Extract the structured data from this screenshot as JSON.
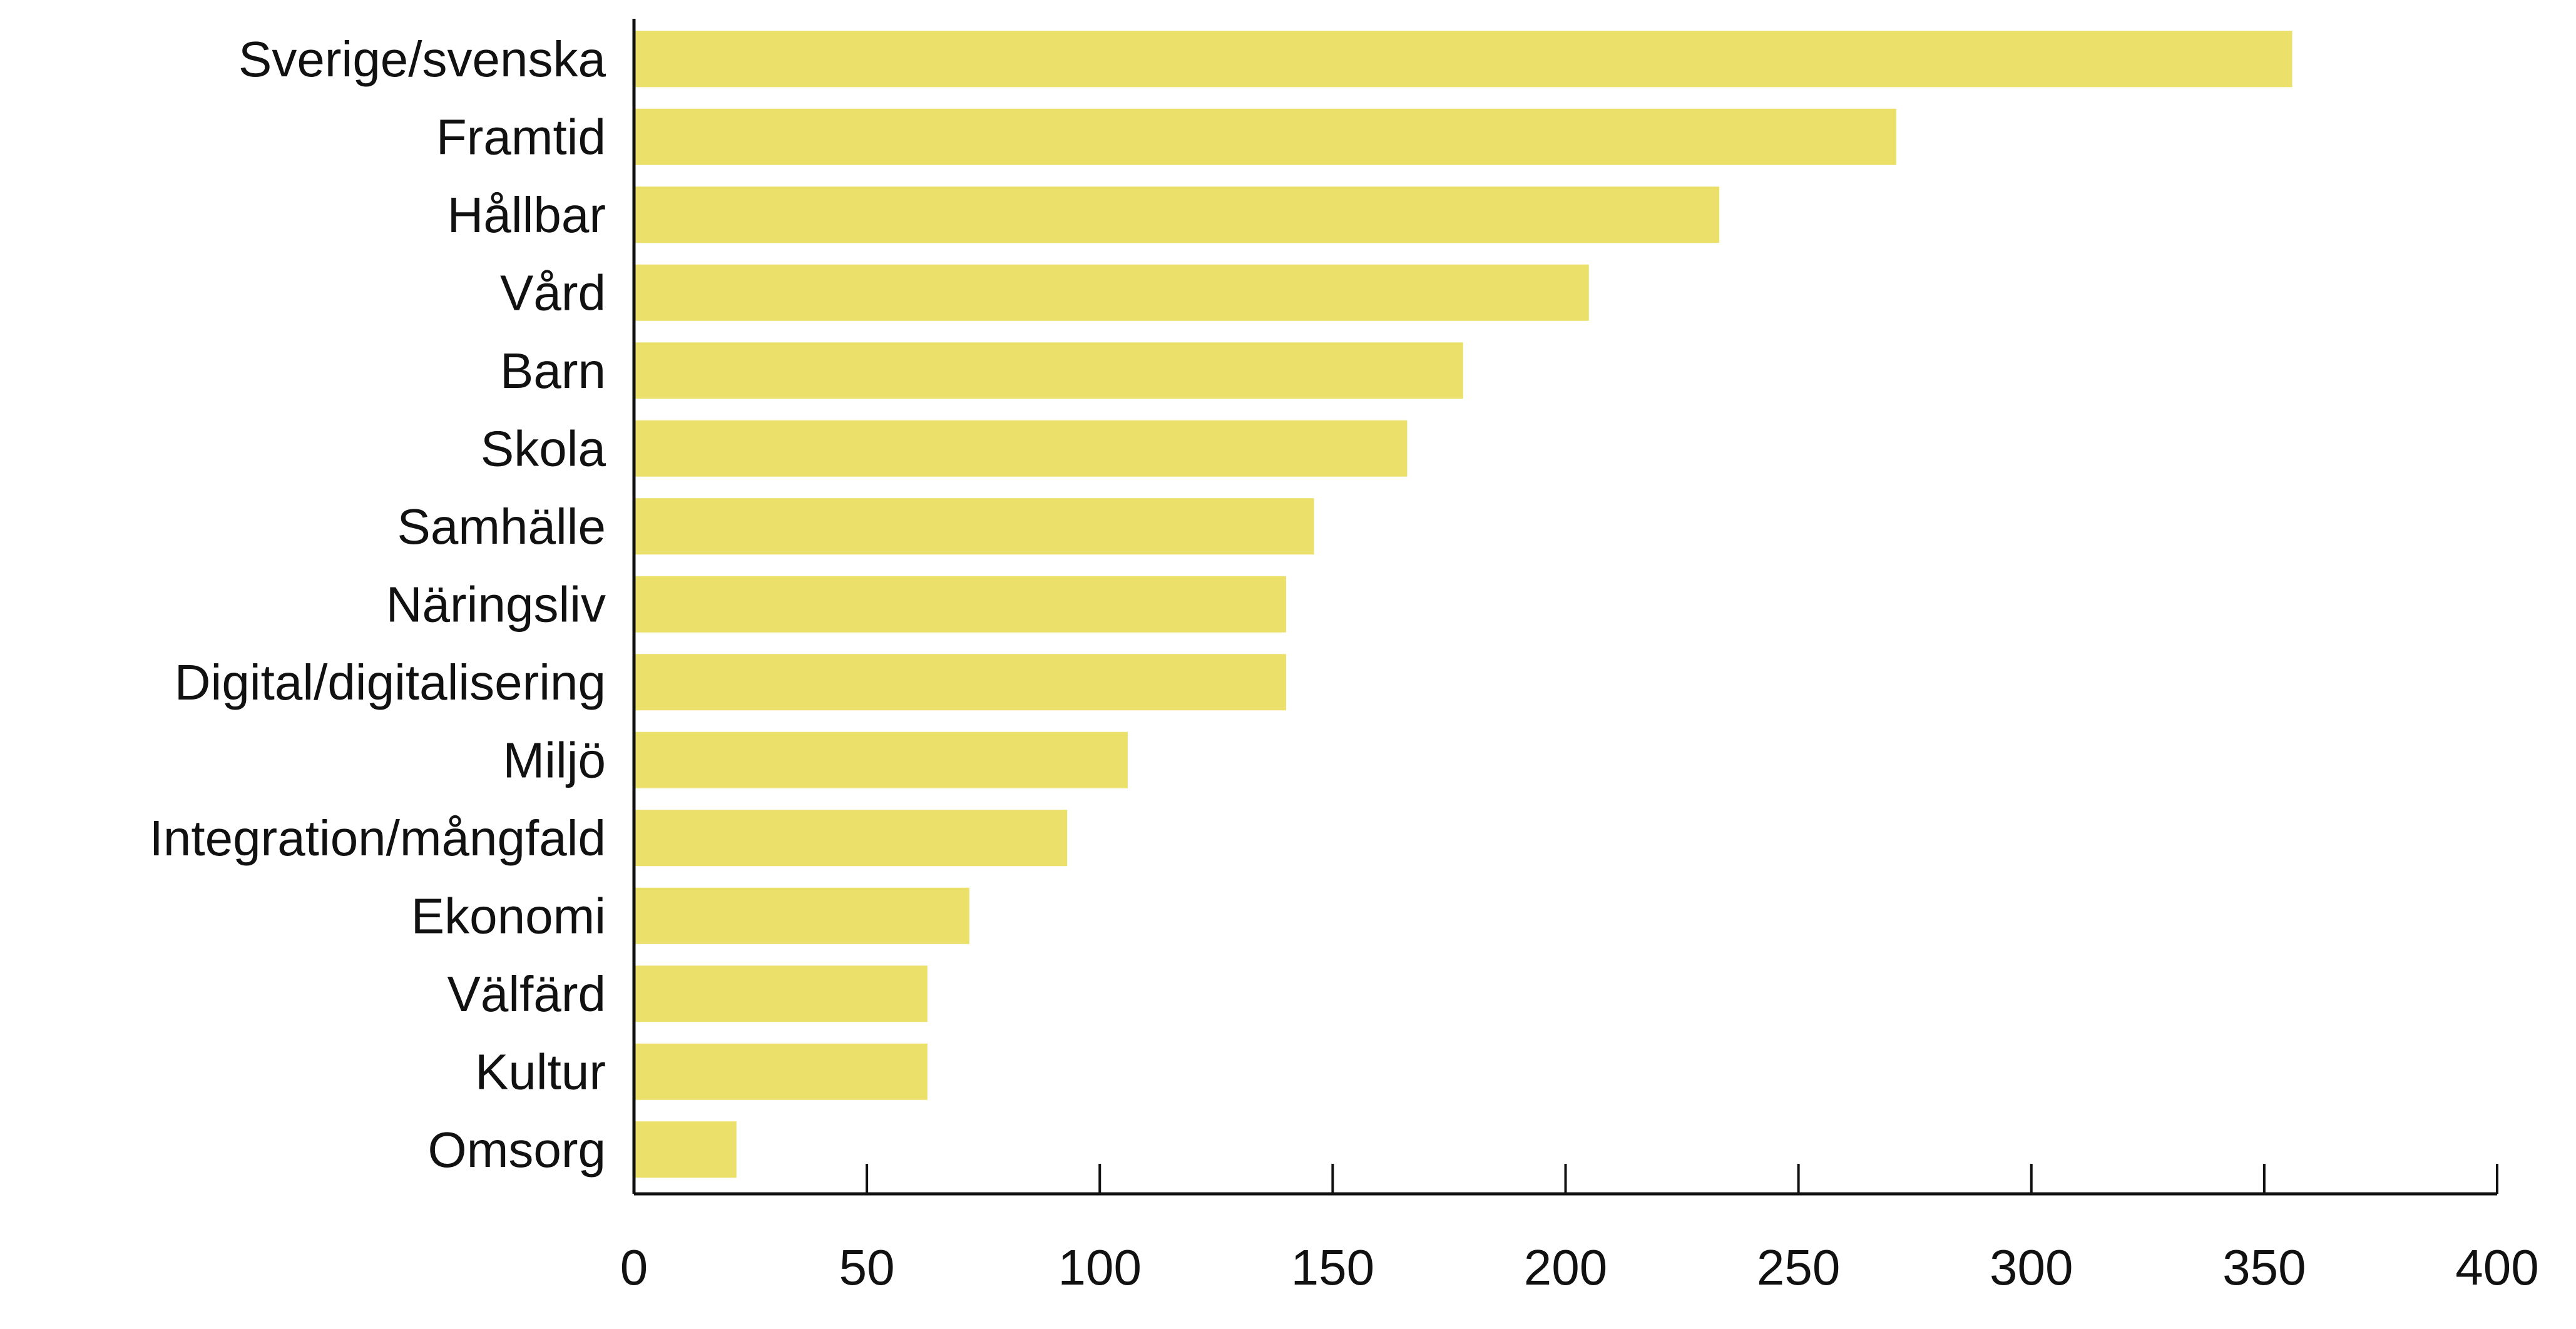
{
  "chart_data": {
    "type": "bar",
    "orientation": "horizontal",
    "title": "",
    "xlabel": "",
    "ylabel": "",
    "categories": [
      "Sverige/svenska",
      "Framtid",
      "Hållbar",
      "Vård",
      "Barn",
      "Skola",
      "Samhälle",
      "Näringsliv",
      "Digital/digitalisering",
      "Miljö",
      "Integration/mångfald",
      "Ekonomi",
      "Välfärd",
      "Kultur",
      "Omsorg"
    ],
    "values": [
      356,
      271,
      233,
      205,
      178,
      166,
      146,
      140,
      140,
      106,
      93,
      72,
      63,
      63,
      22
    ],
    "xlim": [
      0,
      400
    ],
    "xticks": [
      0,
      50,
      100,
      150,
      200,
      250,
      300,
      350,
      400
    ],
    "xtick_labels": [
      "0",
      "50",
      "100",
      "150",
      "200",
      "250",
      "300",
      "350",
      "400"
    ],
    "bar_color": "#ebe06a",
    "grid": false,
    "legend": "none"
  }
}
